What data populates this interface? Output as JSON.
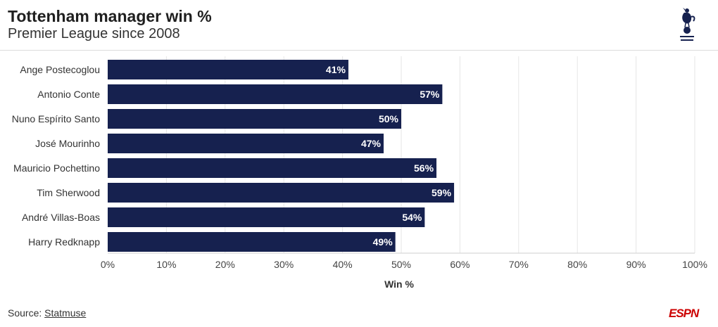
{
  "header": {
    "title": "Tottenham manager win %",
    "subtitle": "Premier League since 2008"
  },
  "footer": {
    "source_prefix": "Source: ",
    "source_link": "Statmuse"
  },
  "logos": {
    "club": "tottenham-hotspur-logo",
    "brand": "ESPN"
  },
  "colors": {
    "bar": "#16214f",
    "bar_label": "#ffffff",
    "grid": "#e6e6e6"
  },
  "chart_data": {
    "type": "bar",
    "orientation": "horizontal",
    "categories": [
      "Ange Postecoglou",
      "Antonio Conte",
      "Nuno Espírito Santo",
      "José Mourinho",
      "Mauricio Pochettino",
      "Tim Sherwood",
      "André Villas-Boas",
      "Harry Redknapp"
    ],
    "values": [
      41,
      57,
      50,
      47,
      56,
      59,
      54,
      49
    ],
    "data_labels": [
      "41%",
      "57%",
      "50%",
      "47%",
      "56%",
      "59%",
      "54%",
      "49%"
    ],
    "xlabel": "Win %",
    "xlim": [
      0,
      100
    ],
    "xticks": [
      0,
      10,
      20,
      30,
      40,
      50,
      60,
      70,
      80,
      90,
      100
    ],
    "xtick_labels": [
      "0%",
      "10%",
      "20%",
      "30%",
      "40%",
      "50%",
      "60%",
      "70%",
      "80%",
      "90%",
      "100%"
    ],
    "grid": true
  }
}
